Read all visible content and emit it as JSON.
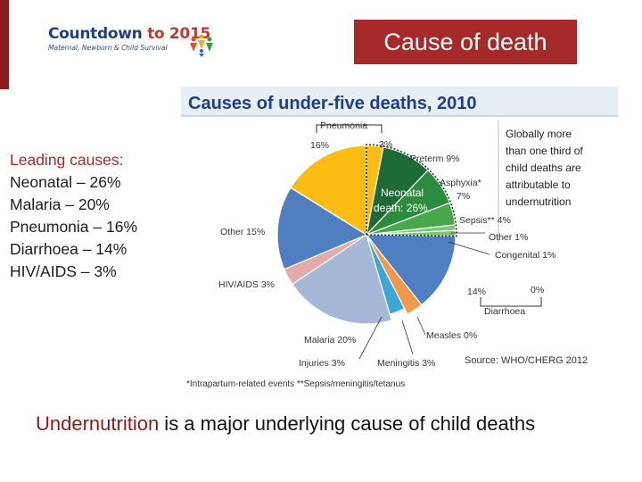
{
  "logo": {
    "name_part1": "Countdown",
    "name_part2": " to 2015",
    "tagline": "Maternal, Newborn & Child Survival"
  },
  "slide_title": "Cause of death",
  "leading_causes": {
    "heading": "Leading causes:",
    "items": [
      "Neonatal – 26%",
      "Malaria – 20%",
      "Pneumonia – 16%",
      "Diarrhoea – 14%",
      "HIV/AIDS – 3%"
    ]
  },
  "figure": {
    "title": "Causes of under-five deaths, 2010",
    "side_note": [
      "Globally more",
      "than one third of",
      "child deaths are",
      "attributable to",
      "undernutrition"
    ],
    "labels": {
      "pneumonia": "Pneumonia",
      "pneumonia_pct": "16%",
      "pneumonia_neonatal_pct": "3%",
      "preterm": "Preterm 9%",
      "asphyxia": "Asphyxia*",
      "asphyxia_pct": "7%",
      "neonatal_line1": "Neonatal",
      "neonatal_line2": "death: 26%",
      "sepsis": "Sepsis** 4%",
      "other_neonatal": "Other 1%",
      "congenital": "Congenital 1%",
      "other": "Other 15%",
      "hiv": "HIV/AIDS 3%",
      "diarrhoea_pct": "14%",
      "diarrhoea_neonatal_pct": "0%",
      "diarrhoea": "Diarrhoea",
      "measles": "Measles 0%",
      "malaria": "Malaria 20%",
      "injuries": "Injuries 3%",
      "meningitis": "Meningitis 3%",
      "source": "Source: WHO/CHERG 2012"
    },
    "footnote": "*Intrapartum-related events  **Sepsis/meningitis/tetanus"
  },
  "bottom_text": {
    "emphasis": "Undernutrition",
    "rest": " is a major underlying cause of child deaths"
  },
  "colors": {
    "brand_red": "#a72a2a",
    "pneumonia": "#fbbd14",
    "preterm": "#1e6b35",
    "asphyxia": "#2b8c3e",
    "sepsis": "#4aa84c",
    "neonatal_minor": "#7cc479",
    "diarrhoea": "#4f7fc1",
    "measles": "#3aa7d6",
    "meningitis": "#f2984a",
    "malaria": "#a6b8d8",
    "hiv": "#e2aaa9",
    "other": "#4f7fc1"
  },
  "chart_data": {
    "type": "pie",
    "title": "Causes of under-five deaths, 2010",
    "slices": [
      {
        "name": "Pneumonia (neonatal)",
        "value": 3
      },
      {
        "name": "Preterm",
        "value": 9
      },
      {
        "name": "Asphyxia",
        "value": 7
      },
      {
        "name": "Sepsis",
        "value": 4
      },
      {
        "name": "Other (neonatal)",
        "value": 1
      },
      {
        "name": "Congenital",
        "value": 1
      },
      {
        "name": "Diarrhoea (neonatal)",
        "value": 0
      },
      {
        "name": "Diarrhoea",
        "value": 14
      },
      {
        "name": "Measles",
        "value": 0
      },
      {
        "name": "Meningitis",
        "value": 3
      },
      {
        "name": "Injuries",
        "value": 3
      },
      {
        "name": "Malaria",
        "value": 20
      },
      {
        "name": "HIV/AIDS",
        "value": 3
      },
      {
        "name": "Other",
        "value": 15
      },
      {
        "name": "Pneumonia",
        "value": 16
      }
    ],
    "groups": [
      {
        "name": "Neonatal death",
        "value": 26
      }
    ]
  }
}
